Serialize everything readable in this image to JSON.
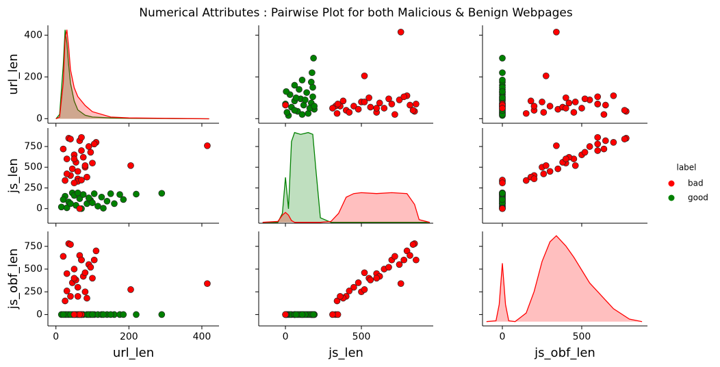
{
  "chart_data": {
    "type": "pairplot",
    "title": "Numerical Attributes : Pairwise Plot for both Malicious & Benign Webpages",
    "variables": [
      {
        "label": "url_len",
        "lim": [
          -22,
          447
        ],
        "xticks": [
          0,
          200,
          400
        ],
        "yticks": [
          0,
          200,
          400
        ],
        "density_lim": [
          -0.05,
          1.05
        ]
      },
      {
        "label": "js_len",
        "lim": [
          -176,
          973
        ],
        "xticks": [
          0,
          500
        ],
        "yticks": [
          0,
          250,
          500,
          750
        ],
        "density_lim": [
          -0.01,
          1.05
        ]
      },
      {
        "label": "js_obf_len",
        "lim": [
          -125,
          914
        ],
        "xticks": [
          0,
          500
        ],
        "yticks": [
          0,
          250,
          500,
          750
        ],
        "density_lim": [
          -0.05,
          1.05
        ]
      }
    ],
    "legend_title": "label",
    "legend_position": "right",
    "series": [
      {
        "name": "good",
        "color": "#008000",
        "points": [
          [
            15,
            20,
            0
          ],
          [
            25,
            150,
            0
          ],
          [
            35,
            80,
            0
          ],
          [
            45,
            190,
            0
          ],
          [
            55,
            40,
            0
          ],
          [
            65,
            120,
            0
          ],
          [
            75,
            170,
            0
          ],
          [
            85,
            60,
            0
          ],
          [
            95,
            100,
            0
          ],
          [
            105,
            180,
            0
          ],
          [
            115,
            30,
            0
          ],
          [
            125,
            140,
            0
          ],
          [
            140,
            90,
            0
          ],
          [
            160,
            60,
            0
          ],
          [
            175,
            170,
            0
          ],
          [
            30,
            10,
            0
          ],
          [
            50,
            160,
            0
          ],
          [
            70,
            0,
            0
          ],
          [
            90,
            130,
            0
          ],
          [
            20,
            110,
            0
          ],
          [
            40,
            60,
            0
          ],
          [
            60,
            190,
            0
          ],
          [
            100,
            70,
            0
          ],
          [
            150,
            180,
            0
          ],
          [
            185,
            110,
            0
          ],
          [
            220,
            175,
            0
          ],
          [
            290,
            185,
            0
          ],
          [
            130,
            5,
            0
          ]
        ],
        "kde": [
          {
            "x": [
              0,
              10,
              20,
              25,
              30,
              35,
              40,
              50,
              60,
              80,
              100,
              150,
              200,
              300,
              420
            ],
            "density": [
              0,
              0.05,
              0.6,
              1.0,
              0.85,
              0.6,
              0.4,
              0.2,
              0.1,
              0.04,
              0.02,
              0.01,
              0.005,
              0.003,
              0
            ]
          },
          {
            "x": [
              -150,
              -50,
              -20,
              0,
              20,
              40,
              60,
              100,
              150,
              180,
              200,
              230,
              300,
              350,
              400,
              450,
              500,
              600,
              700,
              800,
              850,
              880,
              950
            ],
            "density": [
              0,
              0,
              0.1,
              0.5,
              0.15,
              0.9,
              1.0,
              0.98,
              1.0,
              0.98,
              0.6,
              0.05,
              0,
              0,
              0,
              0,
              0,
              0,
              0,
              0,
              0,
              0,
              0
            ]
          },
          null
        ]
      },
      {
        "name": "bad",
        "color": "#ff0000",
        "points": [
          [
            25,
            340,
            150
          ],
          [
            40,
            400,
            200
          ],
          [
            60,
            450,
            300
          ],
          [
            80,
            500,
            250
          ],
          [
            100,
            550,
            400
          ],
          [
            30,
            600,
            450
          ],
          [
            50,
            650,
            500
          ],
          [
            70,
            700,
            600
          ],
          [
            90,
            750,
            550
          ],
          [
            110,
            800,
            700
          ],
          [
            35,
            850,
            780
          ],
          [
            65,
            820,
            650
          ],
          [
            45,
            480,
            350
          ],
          [
            85,
            380,
            180
          ],
          [
            55,
            560,
            380
          ],
          [
            75,
            620,
            420
          ],
          [
            95,
            680,
            520
          ],
          [
            20,
            720,
            640
          ],
          [
            105,
            780,
            600
          ],
          [
            40,
            840,
            770
          ],
          [
            60,
            360,
            200
          ],
          [
            30,
            420,
            260
          ],
          [
            80,
            520,
            460
          ],
          [
            50,
            600,
            400
          ],
          [
            70,
            860,
            600
          ],
          [
            415,
            760,
            340
          ],
          [
            205,
            520,
            275
          ],
          [
            60,
            330,
            0
          ],
          [
            70,
            345,
            0
          ],
          [
            65,
            0,
            0
          ],
          [
            50,
            310,
            0
          ]
        ],
        "kde": [
          {
            "x": [
              0,
              10,
              20,
              25,
              30,
              35,
              40,
              50,
              60,
              80,
              100,
              150,
              200,
              300,
              420
            ],
            "density": [
              0,
              0.02,
              0.4,
              0.9,
              1.0,
              0.8,
              0.55,
              0.35,
              0.25,
              0.15,
              0.08,
              0.02,
              0.01,
              0.005,
              0
            ]
          },
          {
            "x": [
              -150,
              -50,
              -20,
              0,
              20,
              40,
              60,
              100,
              150,
              180,
              200,
              230,
              300,
              350,
              400,
              450,
              500,
              600,
              700,
              800,
              850,
              880,
              950
            ],
            "density": [
              0,
              0.01,
              0.08,
              0.11,
              0.08,
              0.02,
              0,
              0,
              0,
              0,
              0,
              0,
              0.01,
              0.1,
              0.28,
              0.32,
              0.33,
              0.32,
              0.33,
              0.32,
              0.2,
              0.03,
              0
            ]
          },
          {
            "x": [
              -100,
              -40,
              -20,
              0,
              20,
              40,
              80,
              150,
              200,
              250,
              300,
              340,
              400,
              450,
              500,
              550,
              600,
              650,
              700,
              800,
              880
            ],
            "density": [
              0,
              0.01,
              0.2,
              0.68,
              0.2,
              0.01,
              0,
              0.1,
              0.35,
              0.7,
              0.93,
              1.0,
              0.88,
              0.75,
              0.6,
              0.45,
              0.35,
              0.25,
              0.15,
              0.03,
              0
            ]
          }
        ]
      }
    ]
  }
}
